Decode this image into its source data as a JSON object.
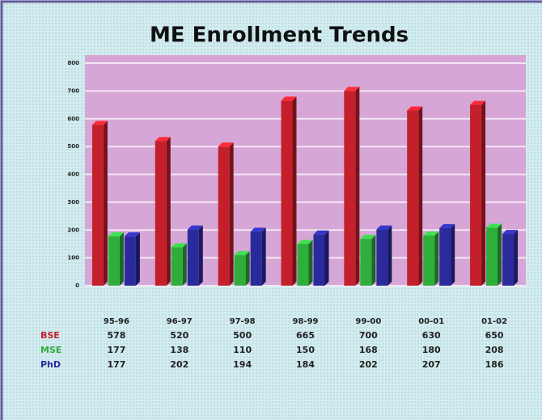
{
  "chart_data": {
    "type": "bar3d",
    "title": "ME Enrollment Trends",
    "categories": [
      "95-96",
      "96-97",
      "97-98",
      "98-99",
      "99-00",
      "00-01",
      "01-02"
    ],
    "series": [
      {
        "name": "BSE",
        "color": "#c4202c",
        "values": [
          578,
          520,
          500,
          665,
          700,
          630,
          650
        ]
      },
      {
        "name": "MSE",
        "color": "#2fae3c",
        "values": [
          177,
          138,
          110,
          150,
          168,
          180,
          208
        ]
      },
      {
        "name": "PhD",
        "color": "#2a2a9c",
        "values": [
          177,
          202,
          194,
          184,
          202,
          207,
          186
        ]
      }
    ],
    "ylim": [
      0,
      800
    ],
    "yticks": [
      0,
      100,
      200,
      300,
      400,
      500,
      600,
      700,
      800
    ],
    "grid": true
  }
}
